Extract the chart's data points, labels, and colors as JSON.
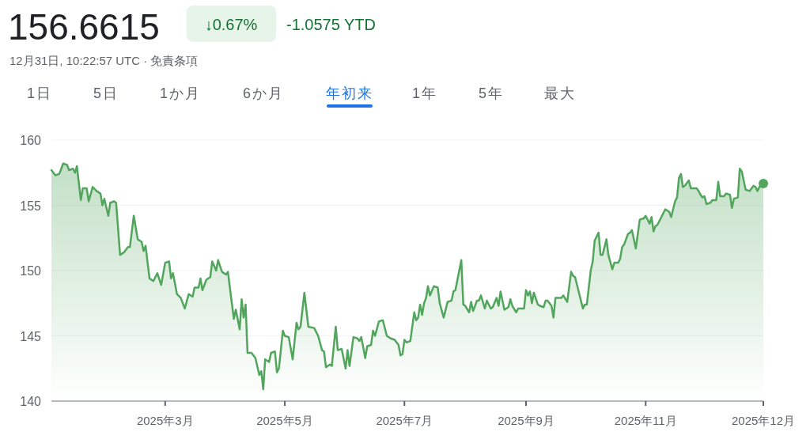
{
  "chart_data": {
    "type": "area",
    "title": "156.6615",
    "annotations": [
      "↓0.67%",
      "-1.0575 YTD",
      "12月31日, 10:22:57 UTC · 免責条項",
      "1日",
      "5日",
      "1か月",
      "6か月",
      "年初来",
      "1年",
      "5年",
      "最大"
    ],
    "x": [
      "2025-01-02",
      "2025-01-04",
      "2025-01-06",
      "2025-01-08",
      "2025-01-10",
      "2025-01-11",
      "2025-01-13",
      "2025-01-14",
      "2025-01-15",
      "2025-01-17",
      "2025-01-18",
      "2025-01-20",
      "2025-01-21",
      "2025-01-23",
      "2025-01-25",
      "2025-01-27",
      "2025-01-28",
      "2025-01-29",
      "2025-01-31",
      "2025-02-01",
      "2025-02-03",
      "2025-02-04",
      "2025-02-06",
      "2025-02-08",
      "2025-02-10",
      "2025-02-11",
      "2025-02-13",
      "2025-02-15",
      "2025-02-17",
      "2025-02-18",
      "2025-02-19",
      "2025-02-21",
      "2025-02-23",
      "2025-02-25",
      "2025-02-27",
      "2025-03-01",
      "2025-03-03",
      "2025-03-04",
      "2025-03-05",
      "2025-03-07",
      "2025-03-09",
      "2025-03-11",
      "2025-03-13",
      "2025-03-15",
      "2025-03-16",
      "2025-03-18",
      "2025-03-19",
      "2025-03-20",
      "2025-03-22",
      "2025-03-24",
      "2025-03-25",
      "2025-03-27",
      "2025-03-28",
      "2025-03-30",
      "2025-04-01",
      "2025-04-02",
      "2025-04-05",
      "2025-04-06",
      "2025-04-08",
      "2025-04-09",
      "2025-04-10",
      "2025-04-11",
      "2025-04-12",
      "2025-04-14",
      "2025-04-16",
      "2025-04-18",
      "2025-04-19",
      "2025-04-20",
      "2025-04-21",
      "2025-04-23",
      "2025-04-24",
      "2025-04-26",
      "2025-04-27",
      "2025-04-28",
      "2025-04-30",
      "2025-05-01",
      "2025-05-03",
      "2025-05-05",
      "2025-05-07",
      "2025-05-08",
      "2025-05-09",
      "2025-05-11",
      "2025-05-13",
      "2025-05-16",
      "2025-05-18",
      "2025-05-20",
      "2025-05-21",
      "2025-05-22",
      "2025-05-24",
      "2025-05-25",
      "2025-05-27",
      "2025-05-28",
      "2025-05-30",
      "2025-06-01",
      "2025-06-02",
      "2025-06-03",
      "2025-06-05",
      "2025-06-07",
      "2025-06-08",
      "2025-06-09",
      "2025-06-11",
      "2025-06-12",
      "2025-06-14",
      "2025-06-15",
      "2025-06-16",
      "2025-06-18",
      "2025-06-20",
      "2025-06-22",
      "2025-06-24",
      "2025-06-26",
      "2025-06-28",
      "2025-06-29",
      "2025-06-30",
      "2025-07-01",
      "2025-07-02",
      "2025-07-04",
      "2025-07-06",
      "2025-07-07",
      "2025-07-08",
      "2025-07-09",
      "2025-07-10",
      "2025-07-11",
      "2025-07-12",
      "2025-07-13",
      "2025-07-14",
      "2025-07-16",
      "2025-07-18",
      "2025-07-19",
      "2025-07-21",
      "2025-07-23",
      "2025-07-25",
      "2025-07-26",
      "2025-07-27",
      "2025-07-30",
      "2025-07-31",
      "2025-08-01",
      "2025-08-03",
      "2025-08-04",
      "2025-08-05",
      "2025-08-07",
      "2025-08-08",
      "2025-08-09",
      "2025-08-11",
      "2025-08-12",
      "2025-08-14",
      "2025-08-15",
      "2025-08-17",
      "2025-08-18",
      "2025-08-19",
      "2025-08-21",
      "2025-08-23",
      "2025-08-24",
      "2025-08-25",
      "2025-08-27",
      "2025-08-28",
      "2025-08-31",
      "2025-09-01",
      "2025-09-02",
      "2025-09-03",
      "2025-09-04",
      "2025-09-05",
      "2025-09-07",
      "2025-09-08",
      "2025-09-10",
      "2025-09-11",
      "2025-09-12",
      "2025-09-14",
      "2025-09-15",
      "2025-09-16",
      "2025-09-19",
      "2025-09-20",
      "2025-09-22",
      "2025-09-24",
      "2025-09-25",
      "2025-09-26",
      "2025-09-28",
      "2025-09-30",
      "2025-10-01",
      "2025-10-02",
      "2025-10-04",
      "2025-10-05",
      "2025-10-06",
      "2025-10-08",
      "2025-10-09",
      "2025-10-10",
      "2025-10-12",
      "2025-10-13",
      "2025-10-15",
      "2025-10-16",
      "2025-10-18",
      "2025-10-19",
      "2025-10-20",
      "2025-10-21",
      "2025-10-23",
      "2025-10-24",
      "2025-10-25",
      "2025-10-27",
      "2025-10-29",
      "2025-10-31",
      "2025-11-01",
      "2025-11-03",
      "2025-11-04",
      "2025-11-05",
      "2025-11-06",
      "2025-11-07",
      "2025-11-09",
      "2025-11-11",
      "2025-11-13",
      "2025-11-14",
      "2025-11-16",
      "2025-11-17",
      "2025-11-18",
      "2025-11-19",
      "2025-11-20",
      "2025-11-21",
      "2025-11-23",
      "2025-11-24",
      "2025-11-27",
      "2025-11-28",
      "2025-11-29",
      "2025-11-30",
      "2025-12-01",
      "2025-12-02",
      "2025-12-04",
      "2025-12-05",
      "2025-12-07",
      "2025-12-08",
      "2025-12-09",
      "2025-12-11",
      "2025-12-12",
      "2025-12-14",
      "2025-12-15",
      "2025-12-16",
      "2025-12-18",
      "2025-12-19",
      "2025-12-20",
      "2025-12-22",
      "2025-12-24",
      "2025-12-26",
      "2025-12-27",
      "2025-12-28",
      "2025-12-29",
      "2025-12-31"
    ],
    "series": [
      {
        "color": "#52a55c",
        "values": [
          157.7,
          157.3,
          157.4,
          158.2,
          158.1,
          157.7,
          157.8,
          157.5,
          158.0,
          155.4,
          156.3,
          156.3,
          155.3,
          156.4,
          156.1,
          155.9,
          155.0,
          155.5,
          154.2,
          155.2,
          155.3,
          155.2,
          151.2,
          151.4,
          151.8,
          151.8,
          154.2,
          152.4,
          152.2,
          151.5,
          151.9,
          149.4,
          149.2,
          149.8,
          148.9,
          150.6,
          150.7,
          149.4,
          149.8,
          148.2,
          147.9,
          147.1,
          148.2,
          148.0,
          148.7,
          148.7,
          149.4,
          148.5,
          149.3,
          149.5,
          150.7,
          150.0,
          150.8,
          149.9,
          149.7,
          149.9,
          146.3,
          147.0,
          145.5,
          147.8,
          146.4,
          147.4,
          143.7,
          143.7,
          143.3,
          142.0,
          142.3,
          140.9,
          143.2,
          143.0,
          143.7,
          143.8,
          142.2,
          142.5,
          145.4,
          145.0,
          144.9,
          143.2,
          146.0,
          145.5,
          145.7,
          148.3,
          145.7,
          145.6,
          145.0,
          143.9,
          143.8,
          142.6,
          142.8,
          142.7,
          145.7,
          143.9,
          144.0,
          142.5,
          143.9,
          142.7,
          144.9,
          144.8,
          144.6,
          144.9,
          143.3,
          144.2,
          144.3,
          145.4,
          145.0,
          146.1,
          146.2,
          145.0,
          144.8,
          144.7,
          144.3,
          143.5,
          143.6,
          144.7,
          144.5,
          144.6,
          146.8,
          146.2,
          146.4,
          147.4,
          146.6,
          147.5,
          147.9,
          148.8,
          148.1,
          148.8,
          148.7,
          147.5,
          146.4,
          147.6,
          147.7,
          148.4,
          148.5,
          150.8,
          147.4,
          147.3,
          146.8,
          147.6,
          146.9,
          147.7,
          147.7,
          148.1,
          147.1,
          147.7,
          147.1,
          147.2,
          147.9,
          147.3,
          148.4,
          147.0,
          147.2,
          147.8,
          147.3,
          146.8,
          147.1,
          147.1,
          148.5,
          148.1,
          148.4,
          147.5,
          148.3,
          147.4,
          147.3,
          147.2,
          147.7,
          147.7,
          147.3,
          146.4,
          147.9,
          147.9,
          148.1,
          147.6,
          149.9,
          149.6,
          149.5,
          148.3,
          147.1,
          147.4,
          147.4,
          150.0,
          150.7,
          152.3,
          152.9,
          151.2,
          151.2,
          152.4,
          151.2,
          150.1,
          150.6,
          150.6,
          150.9,
          151.8,
          152.0,
          152.8,
          152.9,
          153.1,
          151.7,
          153.9,
          154.0,
          154.2,
          153.6,
          154.1,
          153.0,
          153.4,
          153.5,
          154.1,
          154.7,
          154.5,
          154.1,
          155.3,
          155.6,
          157.1,
          157.4,
          156.4,
          156.5,
          156.9,
          156.3,
          156.3,
          156.1,
          155.8,
          155.6,
          155.7,
          155.1,
          155.2,
          155.4,
          155.4,
          156.8,
          155.7,
          155.7,
          155.9,
          155.8,
          154.8,
          155.5,
          155.6,
          157.8,
          157.6,
          156.2,
          156.1,
          156.5,
          156.4,
          156.1,
          156.4,
          156.66
        ]
      }
    ],
    "xlim": [
      "2025-01-02",
      "2025-12-31"
    ],
    "xticks": [
      {
        "value": "2025-03-01",
        "label": "2025年3月"
      },
      {
        "value": "2025-05-01",
        "label": "2025年5月"
      },
      {
        "value": "2025-07-01",
        "label": "2025年7月"
      },
      {
        "value": "2025-09-01",
        "label": "2025年9月"
      },
      {
        "value": "2025-11-01",
        "label": "2025年11月"
      },
      {
        "value": "2025-12-31",
        "label": "2025年12月"
      }
    ],
    "ylim": [
      140,
      160
    ],
    "yticks": [
      140,
      145,
      150,
      155,
      160
    ],
    "grid": "y"
  }
}
